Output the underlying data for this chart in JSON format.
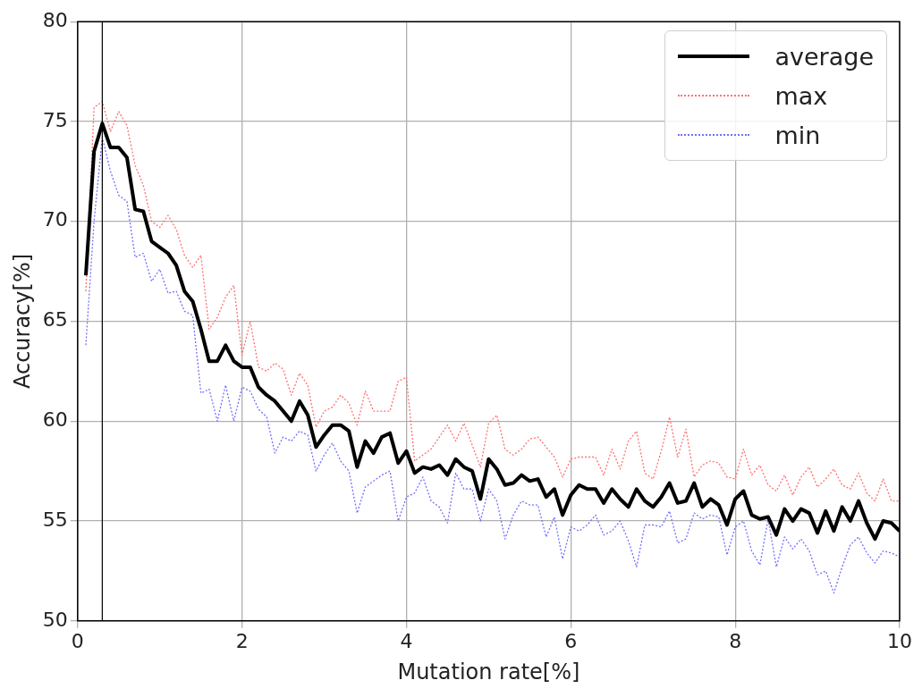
{
  "chart_data": {
    "type": "line",
    "xlabel": "Mutation rate[%]",
    "ylabel": "Accuracy[%]",
    "x": [
      0.1,
      0.2,
      0.3,
      0.4,
      0.5,
      0.6,
      0.7,
      0.8,
      0.9,
      1.0,
      1.1,
      1.2,
      1.3,
      1.4,
      1.5,
      1.6,
      1.7,
      1.8,
      1.9,
      2.0,
      2.1,
      2.2,
      2.3,
      2.4,
      2.5,
      2.6,
      2.7,
      2.8,
      2.9,
      3.0,
      3.1,
      3.2,
      3.3,
      3.4,
      3.5,
      3.6,
      3.7,
      3.8,
      3.9,
      4.0,
      4.1,
      4.2,
      4.3,
      4.4,
      4.5,
      4.6,
      4.7,
      4.8,
      4.9,
      5.0,
      5.1,
      5.2,
      5.3,
      5.4,
      5.5,
      5.6,
      5.7,
      5.8,
      5.9,
      6.0,
      6.1,
      6.2,
      6.3,
      6.4,
      6.5,
      6.6,
      6.7,
      6.8,
      6.9,
      7.0,
      7.1,
      7.2,
      7.3,
      7.4,
      7.5,
      7.6,
      7.7,
      7.8,
      7.9,
      8.0,
      8.1,
      8.2,
      8.3,
      8.4,
      8.5,
      8.6,
      8.7,
      8.8,
      8.9,
      9.0,
      9.1,
      9.2,
      9.3,
      9.4,
      9.5,
      9.6,
      9.7,
      9.8,
      9.9,
      10.0
    ],
    "series": [
      {
        "name": "average",
        "color": "#000000",
        "line_style": "solid",
        "values": [
          67.3,
          73.5,
          74.9,
          73.7,
          73.7,
          73.2,
          70.6,
          70.5,
          69.0,
          68.7,
          68.4,
          67.8,
          66.5,
          66.0,
          64.6,
          63.0,
          63.0,
          63.8,
          63.0,
          62.7,
          62.7,
          61.7,
          61.3,
          61.0,
          60.5,
          60.0,
          61.0,
          60.3,
          58.7,
          59.3,
          59.8,
          59.8,
          59.5,
          57.7,
          59.0,
          58.4,
          59.2,
          59.4,
          57.9,
          58.5,
          57.4,
          57.7,
          57.6,
          57.8,
          57.3,
          58.1,
          57.7,
          57.5,
          56.1,
          58.1,
          57.6,
          56.8,
          56.9,
          57.3,
          57.0,
          57.1,
          56.2,
          56.6,
          55.3,
          56.3,
          56.8,
          56.6,
          56.6,
          55.9,
          56.6,
          56.1,
          55.7,
          56.6,
          56.0,
          55.7,
          56.2,
          56.9,
          55.9,
          56.0,
          56.9,
          55.7,
          56.1,
          55.8,
          54.8,
          56.1,
          56.5,
          55.3,
          55.1,
          55.2,
          54.3,
          55.6,
          55.0,
          55.6,
          55.4,
          54.4,
          55.5,
          54.5,
          55.7,
          55.0,
          56.0,
          54.9,
          54.1,
          55.0,
          54.9,
          54.5
        ]
      },
      {
        "name": "max",
        "color": "#ff7070",
        "line_style": "dotted",
        "values": [
          66.5,
          75.7,
          76.0,
          74.5,
          75.5,
          74.8,
          72.8,
          71.8,
          70.0,
          69.7,
          70.3,
          69.6,
          68.3,
          67.7,
          68.3,
          64.6,
          65.2,
          66.2,
          66.8,
          63.3,
          65.0,
          62.7,
          62.5,
          62.9,
          62.6,
          61.3,
          62.4,
          61.8,
          59.7,
          60.5,
          60.7,
          61.3,
          60.9,
          59.8,
          61.5,
          60.5,
          60.5,
          60.5,
          62.0,
          62.2,
          58.0,
          58.3,
          58.6,
          59.2,
          59.8,
          59.0,
          59.9,
          58.8,
          57.7,
          59.9,
          60.3,
          58.6,
          58.3,
          58.6,
          59.1,
          59.2,
          58.7,
          58.2,
          57.2,
          58.1,
          58.2,
          58.2,
          58.2,
          57.3,
          58.6,
          57.6,
          59.0,
          59.5,
          57.4,
          57.1,
          58.5,
          60.2,
          58.2,
          59.6,
          57.2,
          57.8,
          58.0,
          57.9,
          57.2,
          57.1,
          58.6,
          57.3,
          57.8,
          56.8,
          56.5,
          57.3,
          56.3,
          57.2,
          57.7,
          56.7,
          57.1,
          57.6,
          56.8,
          56.6,
          57.4,
          56.4,
          56.0,
          57.1,
          56.0,
          56.0
        ]
      },
      {
        "name": "min",
        "color": "#7070ff",
        "line_style": "dotted",
        "values": [
          63.8,
          70.0,
          74.2,
          72.5,
          71.3,
          71.0,
          68.2,
          68.4,
          67.0,
          67.6,
          66.4,
          66.5,
          65.5,
          65.3,
          61.4,
          61.6,
          60.0,
          61.8,
          60.0,
          61.7,
          61.5,
          60.6,
          60.2,
          58.4,
          59.2,
          59.0,
          59.5,
          59.3,
          57.5,
          58.3,
          58.9,
          58.0,
          57.5,
          55.4,
          56.7,
          57.0,
          57.3,
          57.5,
          55.0,
          56.2,
          56.4,
          57.2,
          56.0,
          55.7,
          54.9,
          57.4,
          56.6,
          56.6,
          55.0,
          56.6,
          56.0,
          54.1,
          55.3,
          56.0,
          55.8,
          55.8,
          54.2,
          55.2,
          53.1,
          54.7,
          54.5,
          54.8,
          55.3,
          54.3,
          54.5,
          55.0,
          54.0,
          52.7,
          54.8,
          54.8,
          54.7,
          55.5,
          53.9,
          54.1,
          55.4,
          55.1,
          55.3,
          55.2,
          53.3,
          54.7,
          55.0,
          53.5,
          52.8,
          55.1,
          52.7,
          54.2,
          53.6,
          54.1,
          53.5,
          52.3,
          52.5,
          51.4,
          52.7,
          53.8,
          54.2,
          53.4,
          52.9,
          53.5,
          53.4,
          53.2
        ]
      }
    ],
    "xlim": [
      0,
      10
    ],
    "xticks": [
      0,
      2,
      4,
      6,
      8,
      10
    ],
    "ylim": [
      50,
      80
    ],
    "yticks": [
      50,
      55,
      60,
      65,
      70,
      75,
      80
    ],
    "ref_lines": [
      {
        "axis": "x",
        "value": 0.3,
        "color": "#000000"
      }
    ],
    "grid": true,
    "legend": "top right",
    "marker": "none"
  }
}
